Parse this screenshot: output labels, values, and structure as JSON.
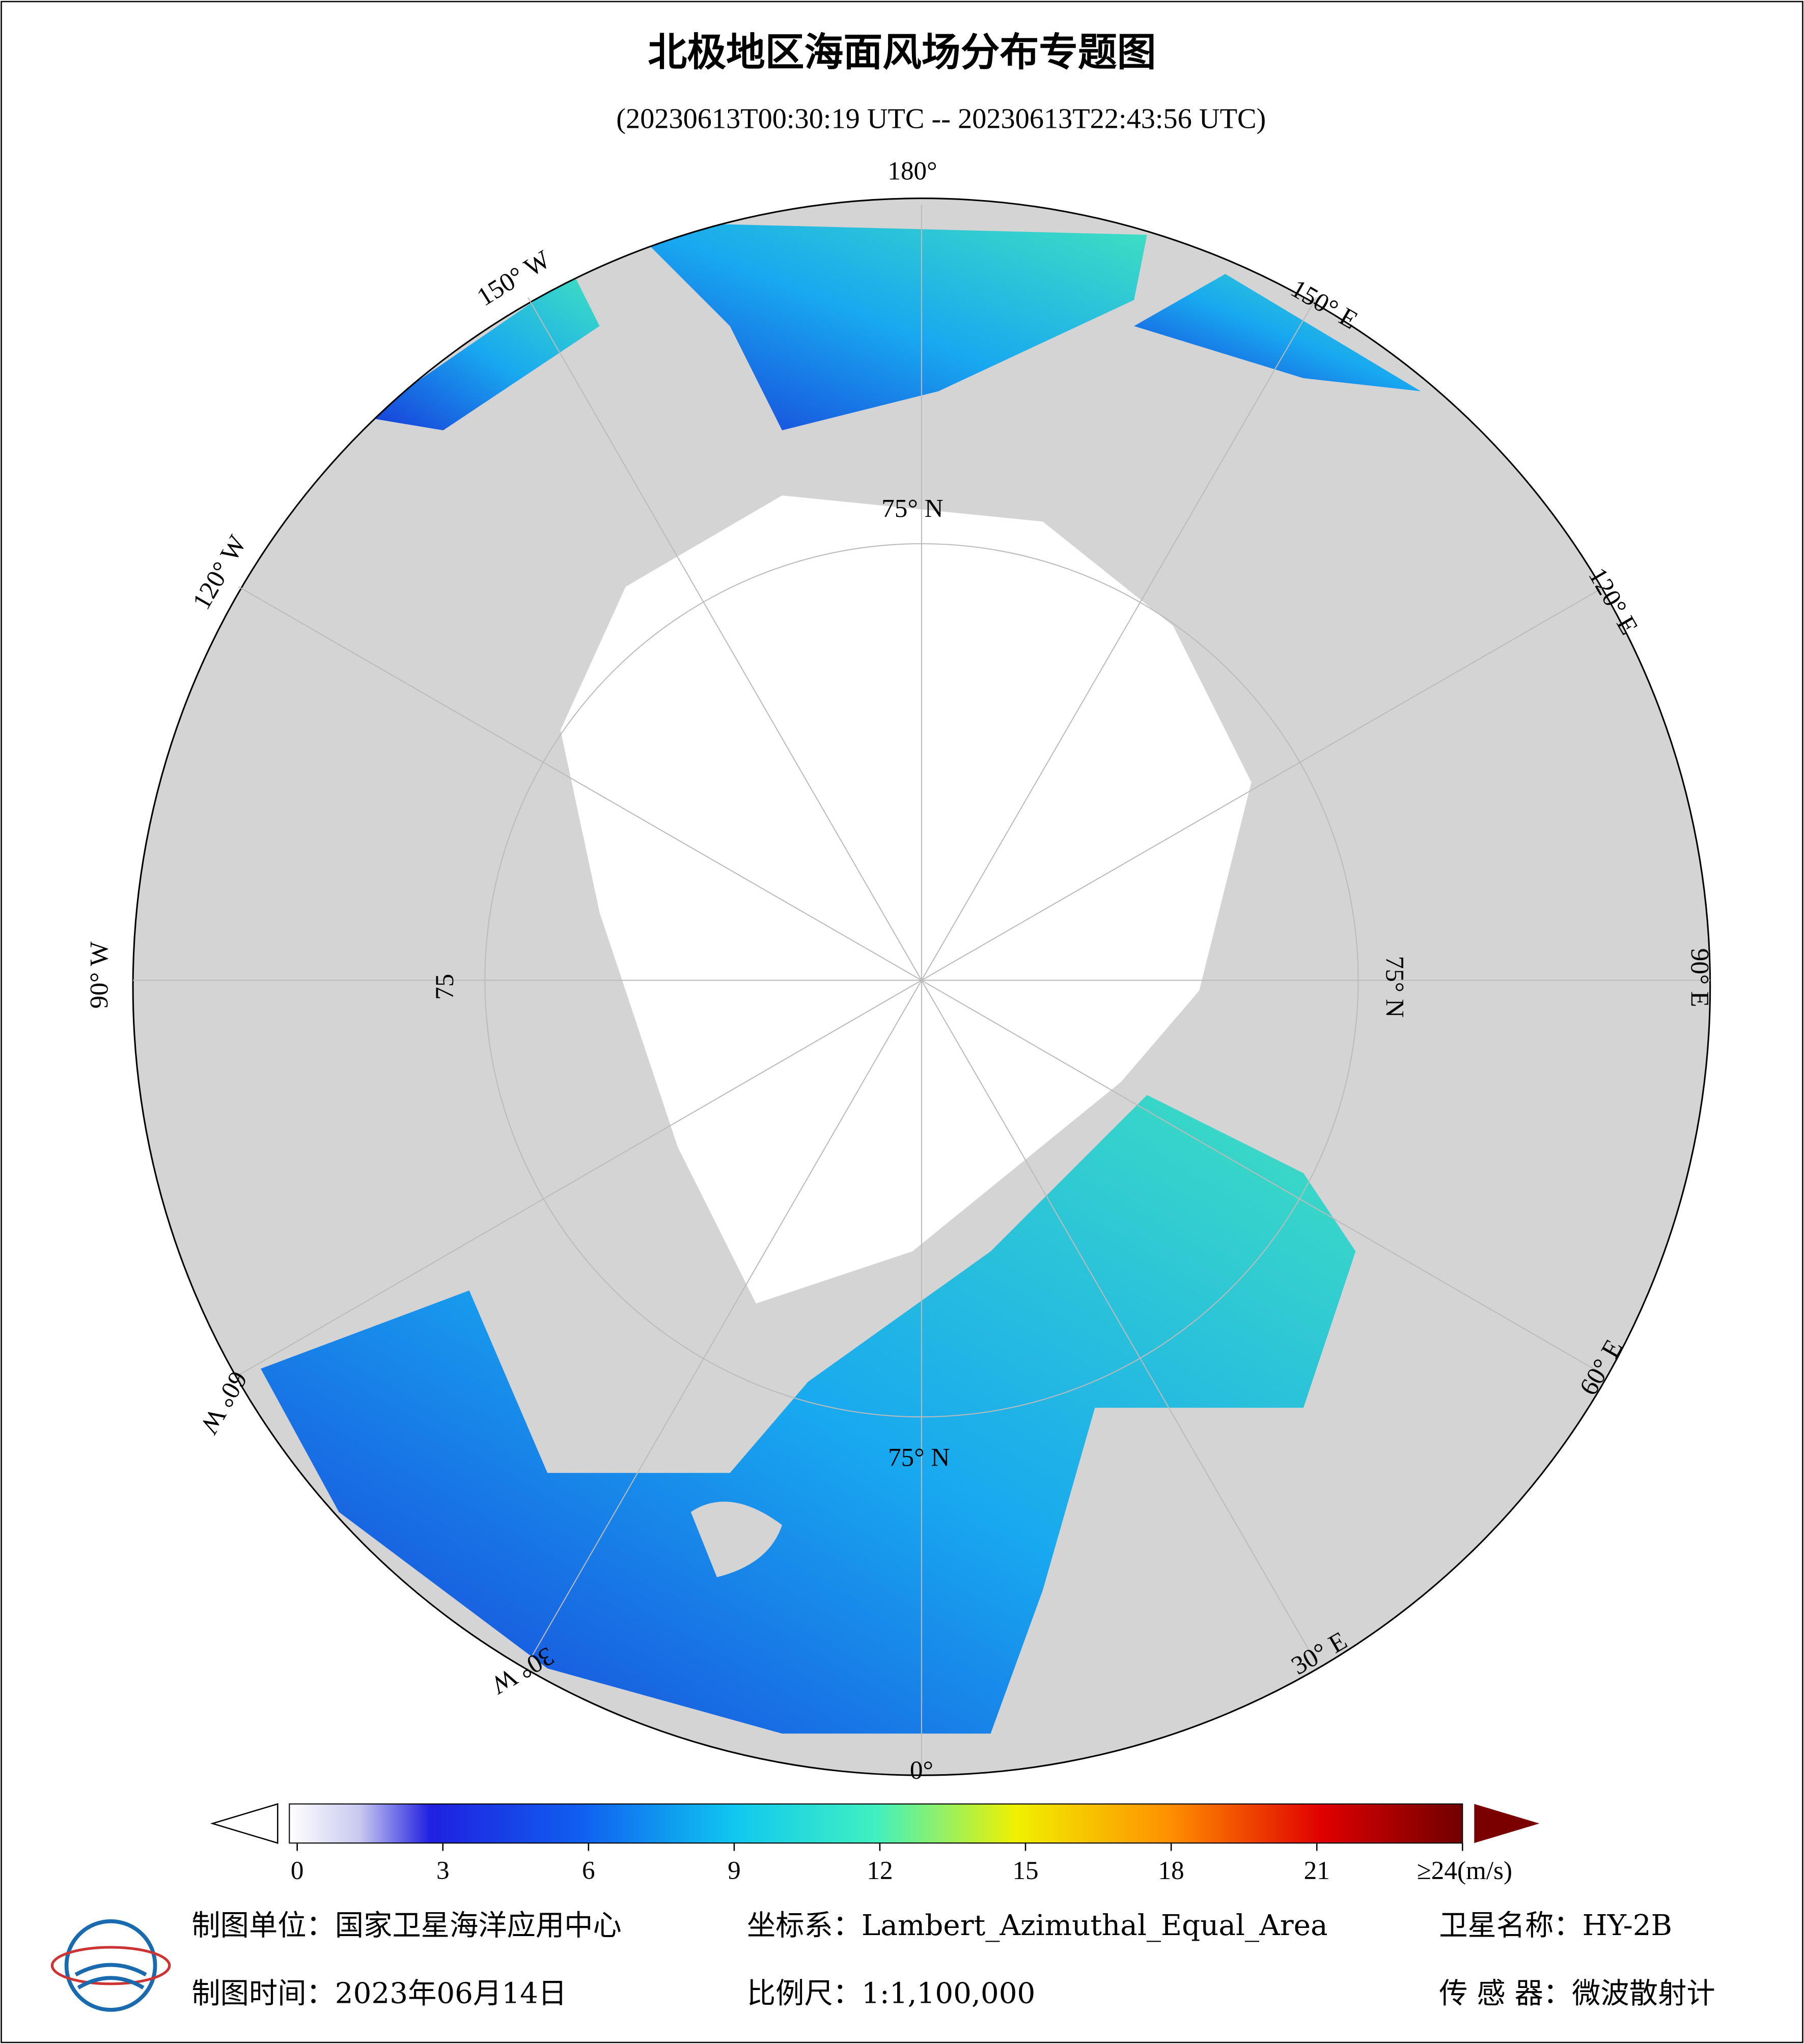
{
  "header": {
    "title": "北极地区海面风场分布专题图",
    "subtitle": "(20230613T00:30:19 UTC -- 20230613T22:43:56 UTC)"
  },
  "map": {
    "lon_labels": [
      "180°",
      "150° W",
      "120° W",
      "90° W",
      "60° W",
      "30° W",
      "0°",
      "30° E",
      "60° E",
      "90° E",
      "120° E",
      "150° E"
    ],
    "lat_labels": [
      "75° N",
      "75° N",
      "75° N",
      "75"
    ]
  },
  "colorbar": {
    "clim": [
      0,
      24
    ],
    "ticks": [
      0,
      3,
      6,
      9,
      12,
      15,
      18,
      21,
      {
        "value": 24,
        "label": "≥24(m/s)"
      }
    ]
  },
  "footer": {
    "unit": "制图单位：国家卫星海洋应用中心",
    "crs": "坐标系：Lambert_Azimuthal_Equal_Area",
    "satellite": "卫星名称：HY-2B",
    "date": "制图时间：2023年06月14日",
    "scale": "比例尺：1:1,100,000",
    "sensor": "传 感 器：微波散射计"
  }
}
